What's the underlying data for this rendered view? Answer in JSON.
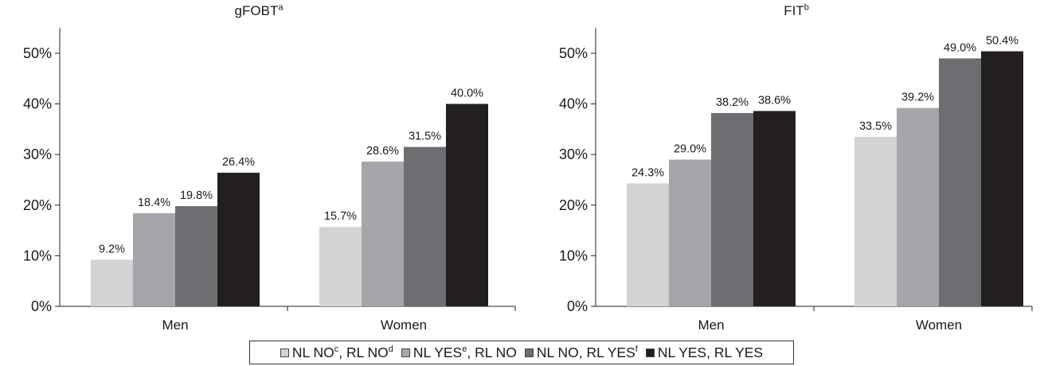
{
  "legend": [
    {
      "label": "NL NO",
      "sup1": "c",
      "label2": ", RL NO",
      "sup2": "d",
      "color": "#d3d3d4"
    },
    {
      "label": "NL YES",
      "sup1": "e",
      "label2": ", RL NO",
      "sup2": "",
      "color": "#a5a6a9"
    },
    {
      "label": "NL NO, RL YES",
      "sup1": "f",
      "label2": "",
      "sup2": "",
      "color": "#6d6e71"
    },
    {
      "label": "NL YES, RL YES",
      "sup1": "",
      "label2": "",
      "sup2": "",
      "color": "#231f20"
    }
  ],
  "chart_data": [
    {
      "type": "bar",
      "title": "gFOBT",
      "title_sup": "a",
      "categories": [
        "Men",
        "Women"
      ],
      "ylim": [
        0,
        50
      ],
      "yticks": [
        "0%",
        "10%",
        "20%",
        "30%",
        "40%",
        "50%"
      ],
      "series": [
        {
          "name": "NL NO, RL NO",
          "values": [
            9.2,
            15.7
          ],
          "labels": [
            "9.2%",
            "15.7%"
          ]
        },
        {
          "name": "NL YES, RL NO",
          "values": [
            18.4,
            28.6
          ],
          "labels": [
            "18.4%",
            "28.6%"
          ]
        },
        {
          "name": "NL NO, RL YES",
          "values": [
            19.8,
            31.5
          ],
          "labels": [
            "19.8%",
            "31.5%"
          ]
        },
        {
          "name": "NL YES, RL YES",
          "values": [
            26.4,
            40.0
          ],
          "labels": [
            "26.4%",
            "40.0%"
          ]
        }
      ]
    },
    {
      "type": "bar",
      "title": "FIT",
      "title_sup": "b",
      "categories": [
        "Men",
        "Women"
      ],
      "ylim": [
        0,
        50
      ],
      "yticks": [
        "0%",
        "10%",
        "20%",
        "30%",
        "40%",
        "50%"
      ],
      "series": [
        {
          "name": "NL NO, RL NO",
          "values": [
            24.3,
            33.5
          ],
          "labels": [
            "24.3%",
            "33.5%"
          ]
        },
        {
          "name": "NL YES, RL NO",
          "values": [
            29.0,
            39.2
          ],
          "labels": [
            "29.0%",
            "39.2%"
          ]
        },
        {
          "name": "NL NO, RL YES",
          "values": [
            38.2,
            49.0
          ],
          "labels": [
            "38.2%",
            "49.0%"
          ]
        },
        {
          "name": "NL YES, RL YES",
          "values": [
            38.6,
            50.4
          ],
          "labels": [
            "38.6%",
            "50.4%"
          ]
        }
      ]
    }
  ]
}
